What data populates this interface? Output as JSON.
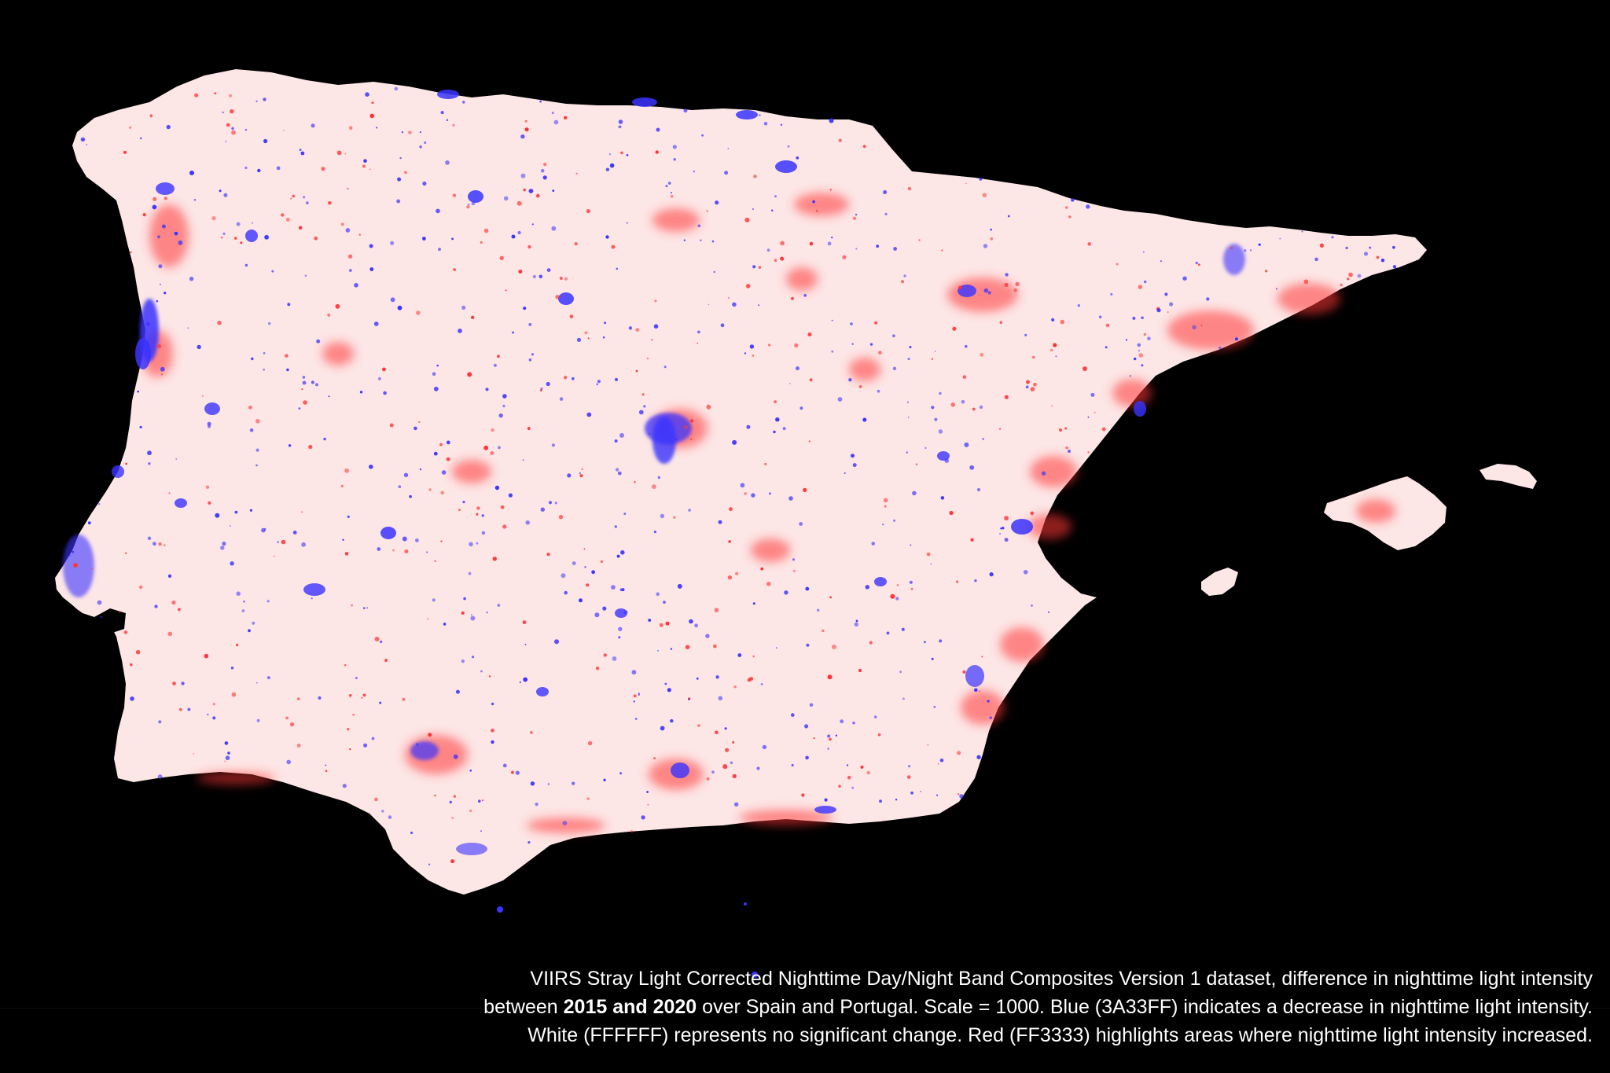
{
  "colors": {
    "background": "#000000",
    "land": "#fde6e6",
    "decrease": "#3A33FF",
    "no_change": "#FFFFFF",
    "increase": "#FF3333"
  },
  "caption": {
    "part1": "VIIRS Stray Light Corrected Nighttime Day/Night Band Composites Version 1 dataset, difference in nighttime light intensity between ",
    "bold": "2015 and 2020",
    "part2": " over Spain and Portugal. Scale = 1000. Blue (3A33FF) indicates a decrease in nighttime light intensity. White (FFFFFF) represents no significant change. Red (FF3333) highlights areas where nighttime light intensity increased."
  }
}
